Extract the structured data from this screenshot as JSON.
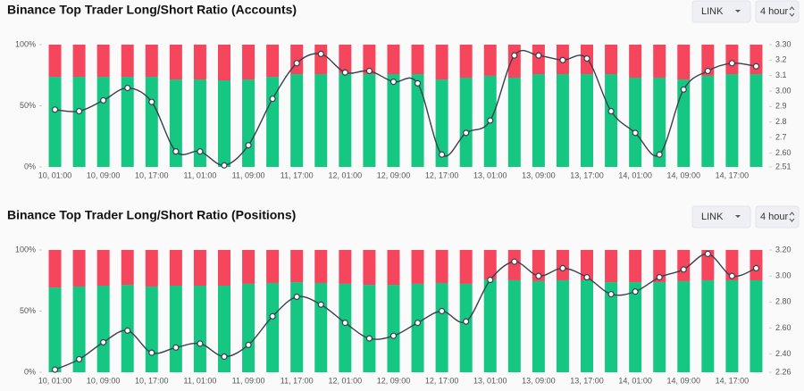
{
  "chart_data": [
    {
      "type": "bar",
      "title": "Binance Top Trader Long/Short Ratio (Accounts)",
      "controls": {
        "symbol": "LINK",
        "interval": "4 hour"
      },
      "stacked": true,
      "categories": [
        "10, 01:00",
        null,
        "10, 09:00",
        null,
        "10, 17:00",
        null,
        "11, 01:00",
        null,
        "11, 09:00",
        null,
        "11, 17:00",
        null,
        "12, 01:00",
        null,
        "12, 09:00",
        null,
        "12, 17:00",
        null,
        "13, 01:00",
        null,
        "13, 09:00",
        null,
        "13, 17:00",
        null,
        "14, 01:00",
        null,
        "14, 09:00",
        null,
        "14, 17:00",
        null
      ],
      "series": [
        {
          "color": "#16c784",
          "values": [
            73.7,
            73.7,
            73.7,
            73.7,
            73.7,
            71.5,
            71.5,
            70.8,
            71.5,
            73.7,
            75.9,
            75.9,
            76.6,
            75.9,
            75.9,
            75.9,
            71.5,
            73.0,
            74.5,
            73.0,
            75.9,
            75.9,
            75.9,
            75.9,
            73.0,
            73.0,
            71.5,
            74.5,
            75.9,
            75.9
          ]
        },
        {
          "color": "#f6465d",
          "values": [
            26.3,
            26.3,
            26.3,
            26.3,
            26.3,
            28.5,
            28.5,
            29.2,
            28.5,
            26.3,
            24.1,
            24.1,
            23.4,
            24.1,
            24.1,
            24.1,
            28.5,
            27.0,
            25.5,
            27.0,
            24.1,
            24.1,
            24.1,
            24.1,
            27.0,
            27.0,
            28.5,
            25.5,
            24.1,
            24.1
          ]
        },
        {
          "color": "#3a3f4b",
          "axis": "y2",
          "values": [
            2.88,
            2.87,
            2.94,
            3.02,
            2.93,
            2.61,
            2.61,
            2.52,
            2.65,
            2.95,
            3.18,
            3.24,
            3.12,
            3.13,
            3.06,
            3.05,
            2.59,
            2.73,
            2.81,
            3.23,
            3.23,
            3.2,
            3.21,
            2.87,
            2.73,
            2.59,
            3.01,
            3.13,
            3.18,
            3.16
          ]
        }
      ],
      "ylim": [
        0,
        100
      ],
      "yticks": [
        {
          "value": 0,
          "label": "0%"
        },
        {
          "value": 50,
          "label": "50%"
        },
        {
          "value": 100,
          "label": "100%"
        }
      ],
      "y2lim": [
        2.51,
        3.3
      ],
      "y2ticks": [
        2.51,
        {
          "value": 2.6,
          "label": "2.60"
        },
        2.7,
        2.8,
        2.9,
        {
          "value": 3.0,
          "label": "3.00"
        },
        3.1,
        3.2,
        {
          "value": 3.3,
          "label": "3.30"
        }
      ]
    },
    {
      "type": "bar",
      "title": "Binance Top Trader Long/Short Ratio (Positions)",
      "controls": {
        "symbol": "LINK",
        "interval": "4 hour"
      },
      "stacked": true,
      "categories": [
        "10, 01:00",
        null,
        "10, 09:00",
        null,
        "10, 17:00",
        null,
        "11, 01:00",
        null,
        "11, 09:00",
        null,
        "11, 17:00",
        null,
        "12, 01:00",
        null,
        "12, 09:00",
        null,
        "12, 17:00",
        null,
        "13, 01:00",
        null,
        "13, 09:00",
        null,
        "13, 17:00",
        null,
        "14, 01:00",
        null,
        "14, 09:00",
        null,
        "14, 17:00",
        null
      ],
      "series": [
        {
          "color": "#16c784",
          "values": [
            69.3,
            70.1,
            70.8,
            71.5,
            70.1,
            70.8,
            70.8,
            70.8,
            72.3,
            73.0,
            73.7,
            73.0,
            72.3,
            71.5,
            71.5,
            72.3,
            73.0,
            72.3,
            75.9,
            75.2,
            74.5,
            75.2,
            75.2,
            73.7,
            73.7,
            73.7,
            74.5,
            75.2,
            75.2,
            75.2
          ]
        },
        {
          "color": "#f6465d",
          "values": [
            30.7,
            29.9,
            29.2,
            28.5,
            29.9,
            29.2,
            29.2,
            29.2,
            27.7,
            27.0,
            26.3,
            27.0,
            27.7,
            28.5,
            28.5,
            27.7,
            27.0,
            27.7,
            24.1,
            24.8,
            25.5,
            24.8,
            24.8,
            26.3,
            26.3,
            26.3,
            25.5,
            24.8,
            24.8,
            24.8
          ]
        },
        {
          "color": "#3a3f4b",
          "axis": "y2",
          "values": [
            2.28,
            2.36,
            2.49,
            2.58,
            2.41,
            2.45,
            2.48,
            2.38,
            2.47,
            2.69,
            2.84,
            2.78,
            2.64,
            2.52,
            2.54,
            2.64,
            2.73,
            2.65,
            2.97,
            3.11,
            3.0,
            3.06,
            2.99,
            2.86,
            2.88,
            2.99,
            3.05,
            3.17,
            3.0,
            3.06
          ]
        }
      ],
      "ylim": [
        0,
        100
      ],
      "yticks": [
        {
          "value": 0,
          "label": "0%"
        },
        {
          "value": 50,
          "label": "50%"
        },
        {
          "value": 100,
          "label": "100%"
        }
      ],
      "y2lim": [
        2.26,
        3.2
      ],
      "y2ticks": [
        2.26,
        {
          "value": 2.4,
          "label": "2.40"
        },
        {
          "value": 2.6,
          "label": "2.60"
        },
        {
          "value": 2.8,
          "label": "2.80"
        },
        {
          "value": 3.0,
          "label": "3.00"
        },
        {
          "value": 3.2,
          "label": "3.20"
        }
      ]
    }
  ]
}
